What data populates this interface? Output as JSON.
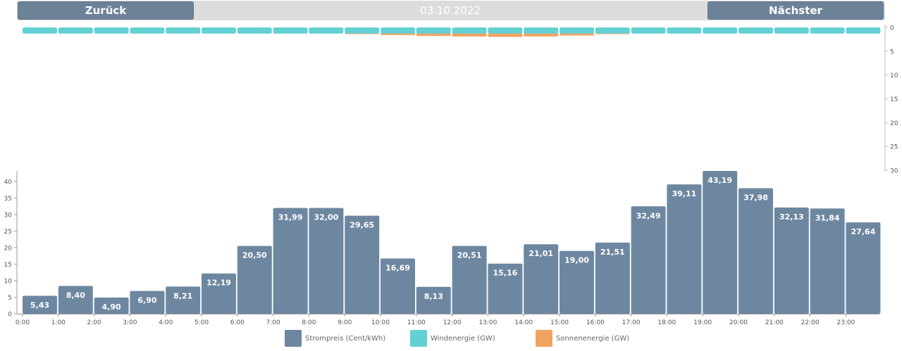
{
  "nav": {
    "prev_label": "Zurück",
    "date": "03.10.2022",
    "next_label": "Nächster"
  },
  "colors": {
    "price": "#6e87a1",
    "wind": "#63d0d4",
    "solar": "#f0a462",
    "axis_text": "#555555",
    "axis_line": "#999999",
    "nav_bar": "#dcdcdc"
  },
  "legend": [
    {
      "label": "Strompreis (Cent/kWh)",
      "color": "#6e87a1",
      "icon": "price-swatch"
    },
    {
      "label": "Windenergie (GW)",
      "color": "#63d0d4",
      "icon": "wind-swatch"
    },
    {
      "label": "Sonnenenergie (GW)",
      "color": "#f0a462",
      "icon": "solar-swatch"
    }
  ],
  "chart_data": [
    {
      "type": "bar",
      "categories": [
        "0:00",
        "1:00",
        "2:00",
        "3:00",
        "4:00",
        "5:00",
        "6:00",
        "7:00",
        "8:00",
        "9:00",
        "10:00",
        "11:00",
        "12:00",
        "13:00",
        "14:00",
        "15:00",
        "16:00",
        "17:00",
        "18:00",
        "19:00",
        "20:00",
        "21:00",
        "22:00",
        "23:00"
      ],
      "series": [
        {
          "name": "Strompreis (Cent/kWh)",
          "values": [
            5.43,
            8.4,
            4.9,
            6.9,
            8.21,
            12.19,
            20.5,
            31.99,
            32.0,
            29.65,
            16.69,
            8.13,
            20.51,
            15.16,
            21.01,
            19.0,
            21.51,
            32.49,
            39.11,
            43.19,
            37.98,
            32.13,
            31.84,
            27.64
          ],
          "labels": [
            "5,43",
            "8,40",
            "4,90",
            "6,90",
            "8,21",
            "12,19",
            "20,50",
            "31,99",
            "32,00",
            "29,65",
            "16,69",
            "8,13",
            "20,51",
            "15,16",
            "21,01",
            "19,00",
            "21,51",
            "32,49",
            "39,11",
            "43,19",
            "37,98",
            "32,13",
            "31,84",
            "27,64"
          ]
        }
      ],
      "yticks": [
        "0",
        "5",
        "10",
        "15",
        "20",
        "25",
        "30",
        "35",
        "40"
      ],
      "ylim": [
        0,
        43.19
      ],
      "legend": "bottom"
    },
    {
      "type": "bar",
      "orientation": "downward",
      "x_bins": 24,
      "series": [
        {
          "name": "Windenergie (GW)",
          "values": [
            1.0,
            1.0,
            1.0,
            1.0,
            1.0,
            1.0,
            1.0,
            1.0,
            1.0,
            1.0,
            1.0,
            1.0,
            1.0,
            1.0,
            1.0,
            1.0,
            1.0,
            1.0,
            1.0,
            1.0,
            1.0,
            1.0,
            1.0,
            1.0
          ]
        },
        {
          "name": "Sonnenenergie (GW)",
          "values": [
            0,
            0,
            0,
            0,
            0,
            0,
            0,
            0,
            0,
            0.1,
            0.3,
            0.5,
            0.6,
            0.7,
            0.6,
            0.4,
            0.1,
            0,
            0,
            0,
            0,
            0,
            0,
            0
          ]
        }
      ],
      "yticks": [
        "0",
        "5",
        "10",
        "15",
        "20",
        "25",
        "30"
      ],
      "ylim": [
        0,
        30
      ],
      "y_axis_side": "right"
    }
  ]
}
